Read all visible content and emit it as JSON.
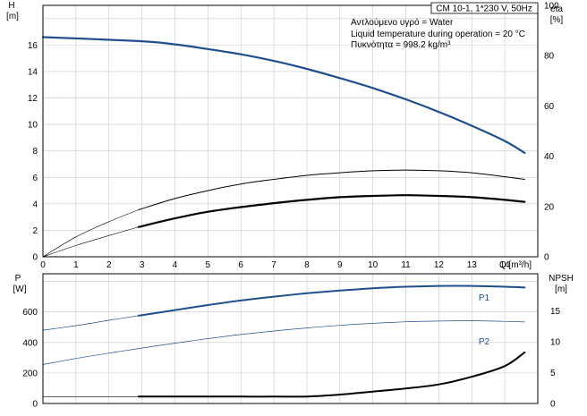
{
  "chart_data": [
    {
      "type": "line",
      "info_box": {
        "title": "CM 10-1, 1*230 V, 50Hz",
        "lines": [
          "Αντλούμενο υγρό = Water",
          "Liquid temperature during operation = 20 °C",
          "Πυκνότητα = 998.2 kg/m³"
        ]
      },
      "xlabel": "Q [m³/h]",
      "x_ticks": [
        "0",
        "1",
        "2",
        "3",
        "4",
        "5",
        "6",
        "7",
        "8",
        "9",
        "10",
        "11",
        "12",
        "13",
        "14"
      ],
      "xlim": [
        0,
        15
      ],
      "left_axis": {
        "label": "H",
        "unit": "[m]",
        "ylim": [
          0,
          19
        ],
        "ticks": [
          "0",
          "2",
          "4",
          "6",
          "8",
          "10",
          "12",
          "14",
          "16"
        ]
      },
      "right_axis": {
        "label": "eta",
        "unit": "[%]",
        "ylim": [
          0,
          100
        ],
        "ticks": [
          "0",
          "20",
          "40",
          "60",
          "80",
          "100"
        ]
      },
      "grid": true,
      "series": [
        {
          "name": "",
          "axis": "left",
          "color": "#1f4e8c",
          "width": 2.2,
          "x": [
            0,
            2.9,
            4,
            5,
            6,
            7,
            8,
            9,
            10,
            11,
            12,
            13,
            14,
            14.6
          ],
          "y": [
            16.6,
            16.3,
            16.05,
            15.7,
            15.3,
            14.8,
            14.2,
            13.5,
            12.75,
            11.9,
            10.95,
            9.9,
            8.75,
            7.85
          ]
        },
        {
          "name": "",
          "axis": "left",
          "color": "#000000",
          "width": 0.6,
          "x": [
            0,
            1,
            2,
            2.9
          ],
          "y": [
            0,
            0.85,
            1.6,
            2.25
          ]
        },
        {
          "name": "",
          "axis": "left",
          "color": "#000000",
          "width": 2.2,
          "x": [
            2.9,
            4,
            5,
            6,
            7,
            8,
            9,
            10,
            11,
            12,
            13,
            14,
            14.6
          ],
          "y": [
            2.25,
            2.9,
            3.4,
            3.75,
            4.05,
            4.3,
            4.5,
            4.6,
            4.65,
            4.6,
            4.5,
            4.3,
            4.15
          ]
        },
        {
          "name": "",
          "axis": "left",
          "color": "#000000",
          "width": 0.6,
          "x": [
            0,
            1,
            2,
            2.9
          ],
          "y": [
            0,
            1.5,
            2.65,
            3.55
          ]
        },
        {
          "name": "",
          "axis": "left",
          "color": "#000000",
          "width": 1.0,
          "x": [
            2.9,
            4,
            5,
            6,
            7,
            8,
            9,
            10,
            11,
            12,
            13,
            14,
            14.6
          ],
          "y": [
            3.55,
            4.4,
            5.0,
            5.5,
            5.85,
            6.15,
            6.35,
            6.5,
            6.55,
            6.5,
            6.35,
            6.05,
            5.85
          ]
        }
      ]
    },
    {
      "type": "line",
      "xlim": [
        0,
        15
      ],
      "left_axis": {
        "label": "P",
        "unit": "[W]",
        "ylim": [
          0,
          850
        ],
        "ticks": [
          "0",
          "200",
          "400",
          "600"
        ]
      },
      "right_axis": {
        "label": "NPSH",
        "unit": "[m]",
        "ylim": [
          0,
          21
        ],
        "ticks": [
          "0",
          "5",
          "10",
          "15"
        ]
      },
      "grid": true,
      "series": [
        {
          "name": "P1",
          "axis": "left",
          "color": "#1f4e8c",
          "width": 0.7,
          "x": [
            0,
            1,
            2,
            2.9
          ],
          "y": [
            480,
            510,
            545,
            575
          ]
        },
        {
          "name": "",
          "axis": "left",
          "color": "#1f4e8c",
          "width": 2.0,
          "x": [
            2.9,
            4,
            5,
            6,
            7,
            8,
            9,
            10,
            11,
            12,
            13,
            14,
            14.6
          ],
          "y": [
            575,
            612,
            645,
            675,
            700,
            722,
            740,
            755,
            765,
            770,
            770,
            765,
            760
          ]
        },
        {
          "name": "P2",
          "axis": "left",
          "color": "#1f4e8c",
          "width": 0.7,
          "x": [
            0,
            1,
            2,
            2.9,
            4,
            5,
            6,
            7,
            8,
            9,
            10,
            11,
            12,
            13,
            14,
            14.6
          ],
          "y": [
            255,
            295,
            330,
            360,
            395,
            425,
            452,
            475,
            495,
            512,
            525,
            535,
            540,
            542,
            538,
            534
          ]
        },
        {
          "name": "",
          "axis": "left",
          "color": "#000000",
          "width": 0.7,
          "x": [
            0,
            2.9
          ],
          "y": [
            45,
            45
          ]
        },
        {
          "name": "",
          "axis": "left",
          "color": "#000000",
          "width": 2.0,
          "x": [
            2.9,
            4,
            5,
            6,
            7,
            8,
            9,
            10,
            11,
            12,
            13,
            14,
            14.6
          ],
          "y": [
            45,
            45,
            45,
            45,
            45,
            46,
            58,
            78,
            98,
            125,
            175,
            245,
            335
          ]
        }
      ]
    }
  ]
}
